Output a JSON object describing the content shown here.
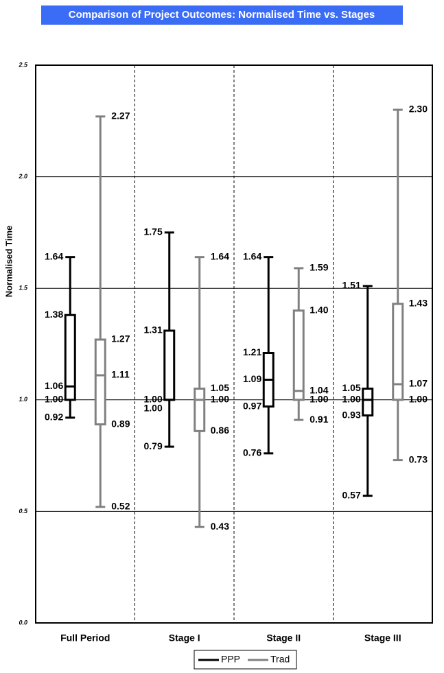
{
  "chart_data": {
    "type": "box",
    "title": "Comparison of Project Outcomes: Normalised Time vs. Stages",
    "y_label": "Normalised Time",
    "categories": [
      "Full Period",
      "Stage I",
      "Stage II",
      "Stage III"
    ],
    "ylim": [
      0,
      2.5
    ],
    "yticks": [
      {
        "value": 0,
        "label": "0.0"
      },
      {
        "value": 0.5,
        "label": "0.5"
      },
      {
        "value": 1,
        "label": "1.0"
      },
      {
        "value": 1.5,
        "label": "1.5"
      },
      {
        "value": 2,
        "label": "2.0"
      },
      {
        "value": 2.5,
        "label": "2.5"
      }
    ],
    "grid": true,
    "legend": "bottom",
    "series": [
      {
        "name": "PPP",
        "color": "#000000",
        "min": [
          0.92,
          0.79,
          0.76,
          0.57
        ],
        "q1": [
          1,
          1,
          0.97,
          0.93
        ],
        "median": [
          1.06,
          1,
          1.09,
          1
        ],
        "q3": [
          1.38,
          1.31,
          1.21,
          1.05
        ],
        "max": [
          1.64,
          1.75,
          1.64,
          1.51
        ],
        "value_labels": {
          "min": [
            "0.92",
            "0.79",
            "0.76",
            "0.57"
          ],
          "q1": [
            "1.00",
            "1.00",
            "0.97",
            "0.93"
          ],
          "median": [
            "1.06",
            "1.00",
            "1.09",
            "1.00"
          ],
          "q3": [
            "1.38",
            "1.31",
            "1.21",
            "1.05"
          ],
          "max": [
            "1.64",
            "1.75",
            "1.64",
            "1.51"
          ]
        }
      },
      {
        "name": "Trad",
        "color": "#808080",
        "min": [
          0.52,
          0.43,
          0.91,
          0.73
        ],
        "q1": [
          0.89,
          0.86,
          1,
          1
        ],
        "median": [
          1.11,
          1,
          1.04,
          1.07
        ],
        "q3": [
          1.27,
          1.05,
          1.4,
          1.43
        ],
        "max": [
          2.27,
          1.64,
          1.59,
          2.3
        ],
        "value_labels": {
          "min": [
            "0.52",
            "0.43",
            "0.91",
            "0.73"
          ],
          "q1": [
            "0.89",
            "0.86",
            "1.00",
            "1.00"
          ],
          "median": [
            "1.11",
            "1.00",
            "1.04",
            "1.07"
          ],
          "q3": [
            "1.27",
            "1.05",
            "1.40",
            "1.43"
          ],
          "max": [
            "2.27",
            "1.64",
            "1.59",
            "2.30"
          ]
        }
      }
    ]
  }
}
